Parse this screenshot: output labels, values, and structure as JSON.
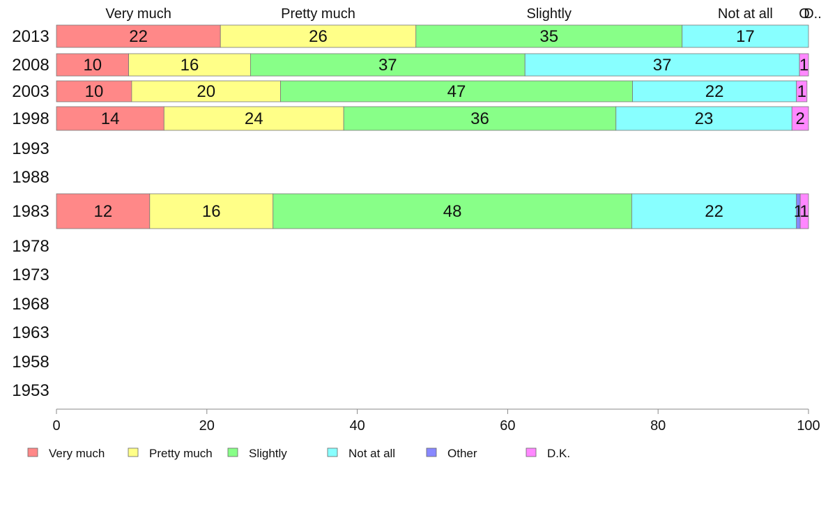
{
  "chart_data": {
    "type": "bar",
    "orientation": "horizontal",
    "stacked": true,
    "xlim": [
      0,
      100
    ],
    "x_ticks": [
      "0",
      "20",
      "40",
      "60",
      "80",
      "100"
    ],
    "x_tick_values": [
      0,
      20,
      40,
      60,
      80,
      100
    ],
    "categories": [
      "2013",
      "2008",
      "2003",
      "1998",
      "1993",
      "1988",
      "1983",
      "1978",
      "1973",
      "1968",
      "1963",
      "1958",
      "1953"
    ],
    "top_labels": [
      "Very much",
      "Pretty much",
      "Slightly",
      "Not at all",
      "Other",
      "D.K."
    ],
    "top_labels_display": [
      "Very much",
      "Pretty much",
      "Slightly",
      "Not at all",
      "O",
      "D.."
    ],
    "legend_position": "bottom",
    "series": [
      {
        "name": "Very much",
        "color": "#ff8888",
        "values": [
          21.8,
          9.6,
          10.0,
          14.3,
          null,
          null,
          12.4,
          null,
          null,
          null,
          null,
          null,
          null
        ],
        "labels": [
          "22",
          "10",
          "10",
          "14",
          "",
          "",
          "12",
          "",
          "",
          "",
          "",
          "",
          ""
        ]
      },
      {
        "name": "Pretty much",
        "color": "#ffff88",
        "values": [
          26.0,
          16.2,
          19.8,
          23.9,
          null,
          null,
          16.4,
          null,
          null,
          null,
          null,
          null,
          null
        ],
        "labels": [
          "26",
          "16",
          "20",
          "24",
          "",
          "",
          "16",
          "",
          "",
          "",
          "",
          "",
          ""
        ]
      },
      {
        "name": "Slightly",
        "color": "#88ff88",
        "values": [
          35.4,
          36.5,
          46.8,
          36.2,
          null,
          null,
          47.7,
          null,
          null,
          null,
          null,
          null,
          null
        ],
        "labels": [
          "35",
          "37",
          "47",
          "36",
          "",
          "",
          "48",
          "",
          "",
          "",
          "",
          "",
          ""
        ]
      },
      {
        "name": "Not at all",
        "color": "#88ffff",
        "values": [
          16.8,
          36.5,
          21.8,
          23.4,
          null,
          null,
          21.9,
          null,
          null,
          null,
          null,
          null,
          null
        ],
        "labels": [
          "17",
          "37",
          "22",
          "23",
          "",
          "",
          "22",
          "",
          "",
          "",
          "",
          "",
          ""
        ]
      },
      {
        "name": "Other",
        "color": "#8888ff",
        "values": [
          0,
          0,
          0,
          0,
          null,
          null,
          0.5,
          null,
          null,
          null,
          null,
          null,
          null
        ],
        "labels": [
          "",
          "",
          "",
          "",
          "",
          "",
          "1",
          "",
          "",
          "",
          "",
          "",
          ""
        ]
      },
      {
        "name": "D.K.",
        "color": "#ff88ff",
        "values": [
          0,
          1.2,
          1.4,
          2.2,
          null,
          null,
          1.1,
          null,
          null,
          null,
          null,
          null,
          null
        ],
        "labels": [
          "",
          "1",
          "1",
          "2",
          "",
          "",
          "1",
          "",
          "",
          "",
          "",
          "",
          ""
        ]
      }
    ]
  }
}
